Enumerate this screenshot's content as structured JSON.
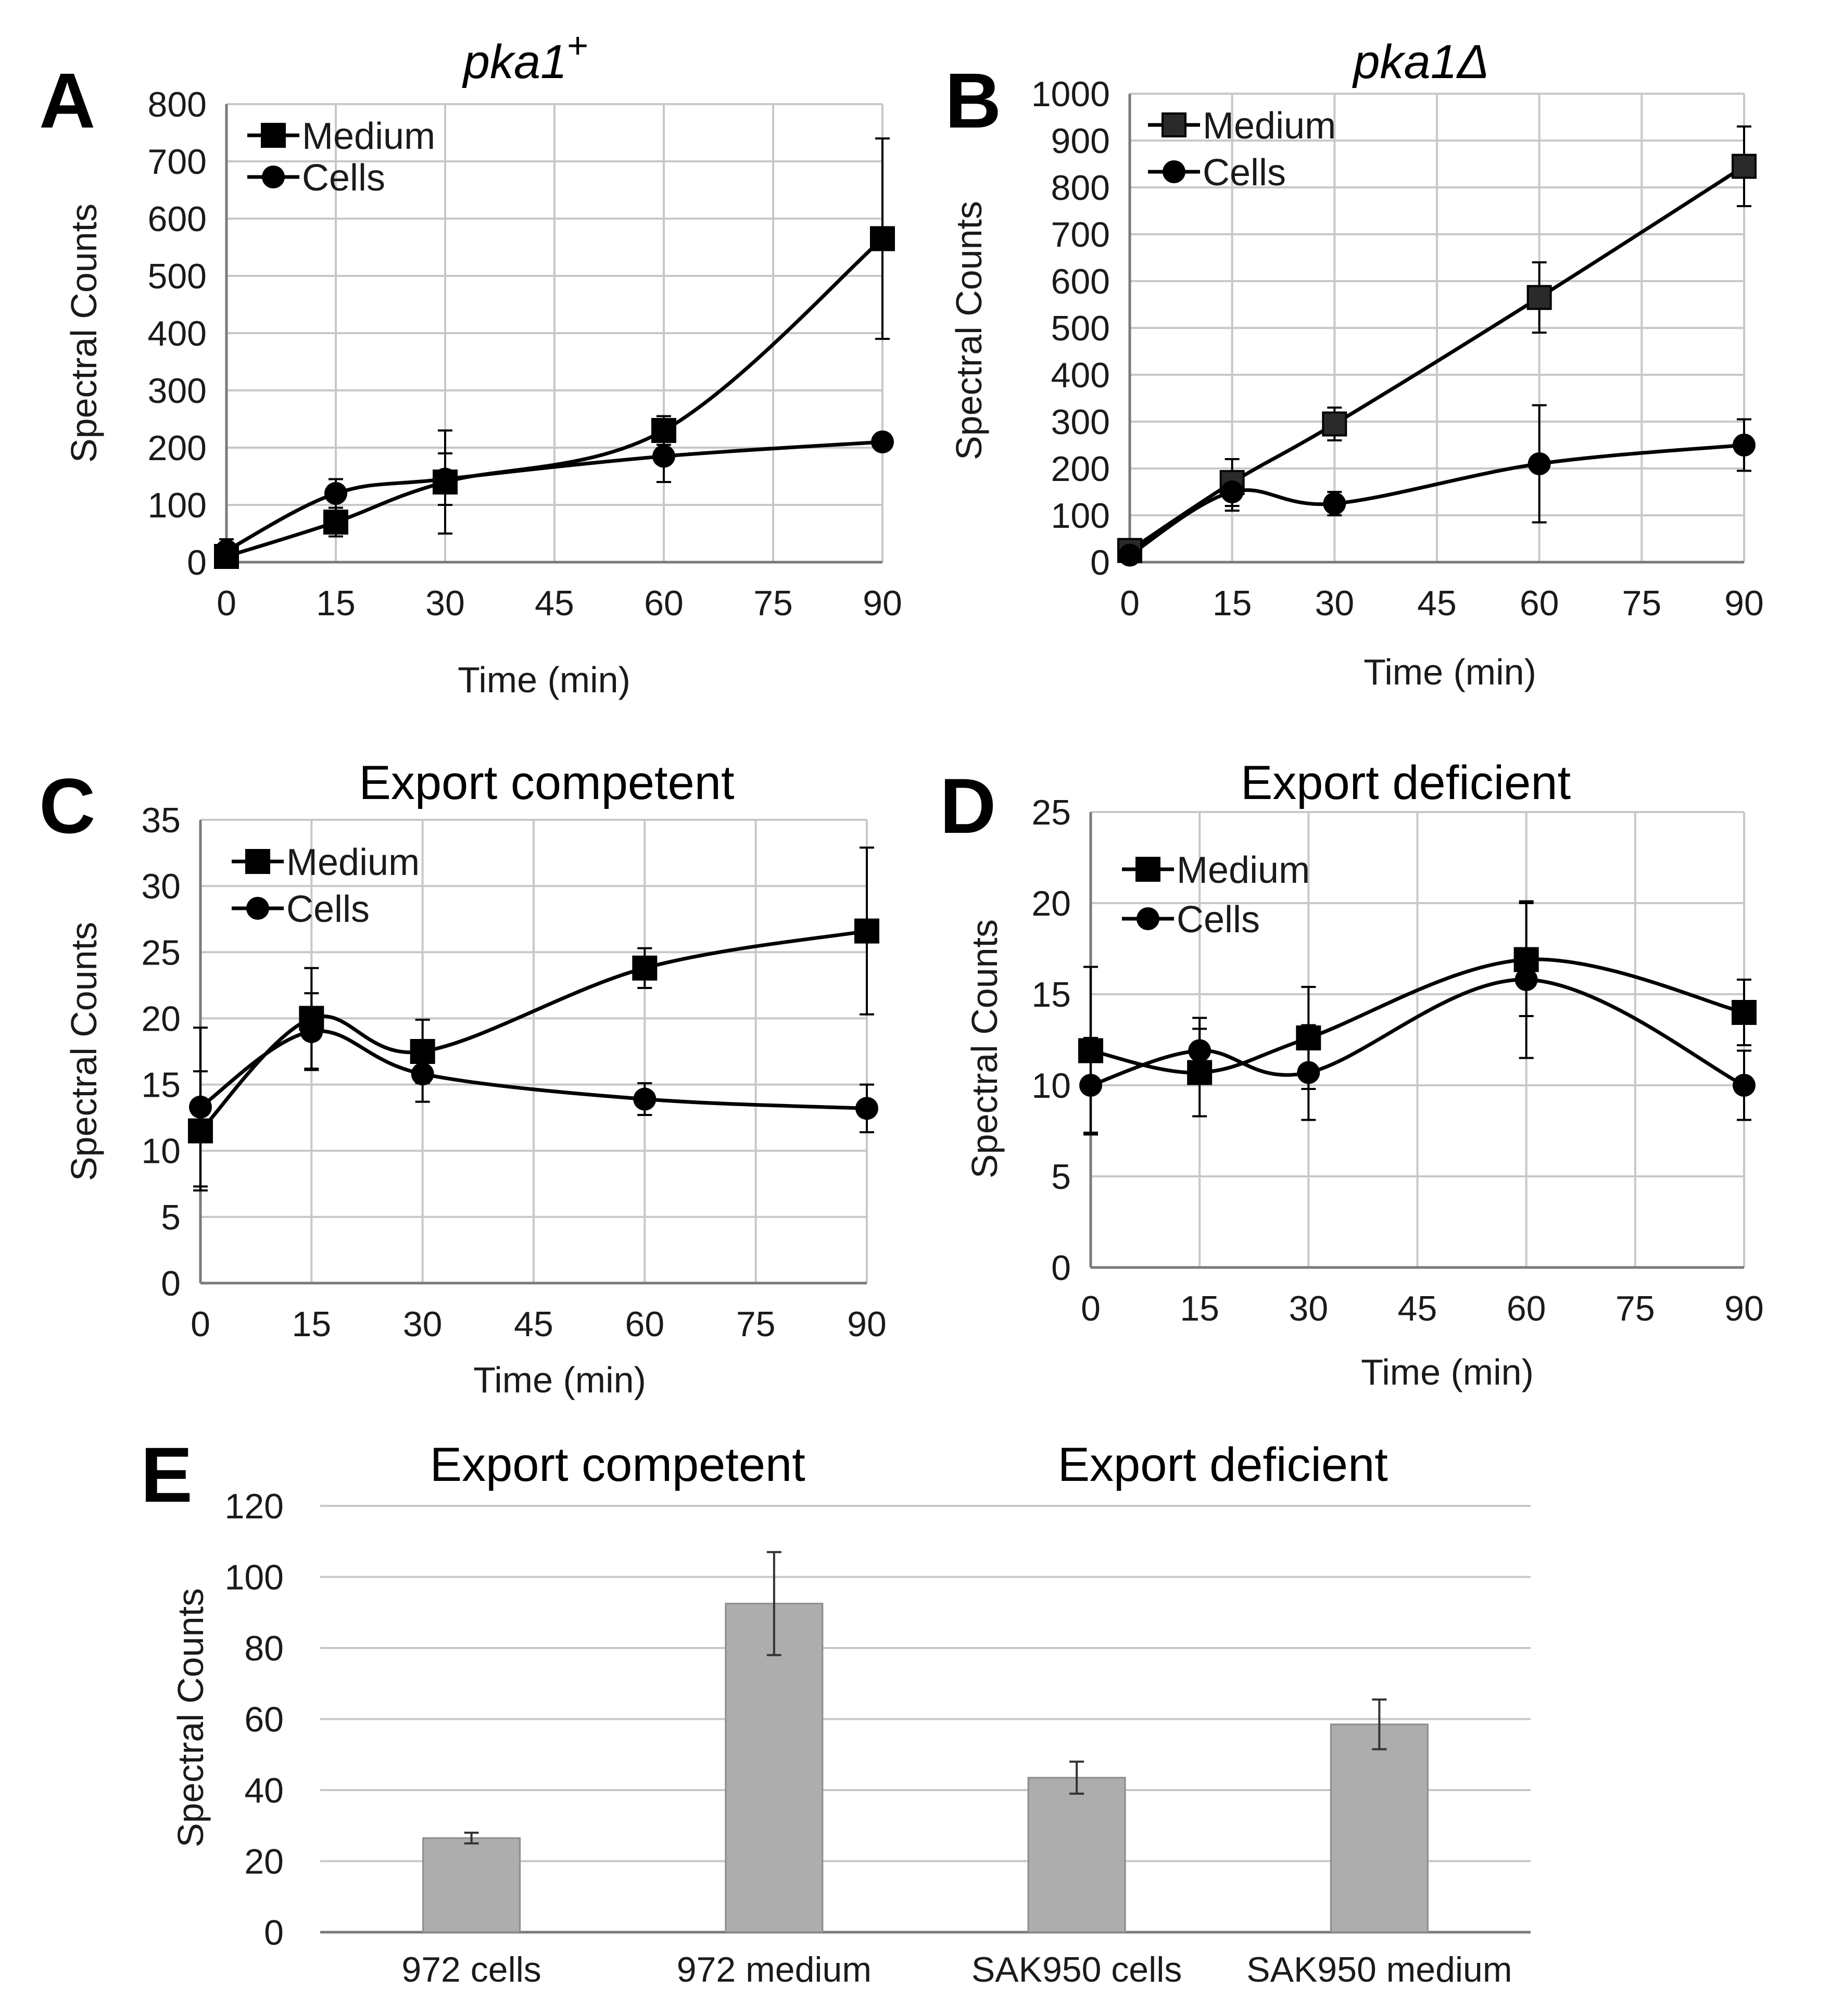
{
  "chart_data": [
    {
      "id": "A",
      "panel_letter": "A",
      "type": "line",
      "title": "pka1",
      "title_sup": "+",
      "xlabel": "Time (min)",
      "ylabel": "Spectral Counts",
      "xlim": [
        0,
        90
      ],
      "xticks": [
        0,
        15,
        30,
        45,
        60,
        75,
        90
      ],
      "ylim": [
        0,
        800
      ],
      "yticks": [
        0,
        100,
        200,
        300,
        400,
        500,
        600,
        700,
        800
      ],
      "grid": true,
      "legend": "top-left",
      "series": [
        {
          "name": "Medium",
          "marker": "square",
          "x": [
            0,
            15,
            30,
            60,
            90
          ],
          "y": [
            10,
            70,
            140,
            230,
            565
          ],
          "err": [
            30,
            25,
            90,
            25,
            175
          ]
        },
        {
          "name": "Cells",
          "marker": "circle",
          "x": [
            0,
            15,
            30,
            60,
            90
          ],
          "y": [
            20,
            120,
            145,
            185,
            210
          ],
          "err": [
            20,
            25,
            45,
            45,
            0
          ]
        }
      ]
    },
    {
      "id": "B",
      "panel_letter": "B",
      "type": "line",
      "title": "pka1Δ",
      "xlabel": "Time (min)",
      "ylabel": "Spectral Counts",
      "xlim": [
        0,
        90
      ],
      "xticks": [
        0,
        15,
        30,
        45,
        60,
        75,
        90
      ],
      "ylim": [
        0,
        1000
      ],
      "yticks": [
        0,
        100,
        200,
        300,
        400,
        500,
        600,
        700,
        800,
        900,
        1000
      ],
      "grid": true,
      "legend": "top-left",
      "series": [
        {
          "name": "Medium",
          "marker": "square",
          "x": [
            0,
            15,
            30,
            60,
            90
          ],
          "y": [
            25,
            170,
            295,
            565,
            845
          ],
          "err": [
            0,
            50,
            35,
            75,
            85
          ]
        },
        {
          "name": "Cells",
          "marker": "circle",
          "x": [
            0,
            15,
            30,
            60,
            90
          ],
          "y": [
            15,
            150,
            125,
            210,
            250
          ],
          "err": [
            0,
            40,
            25,
            125,
            55
          ]
        }
      ]
    },
    {
      "id": "C",
      "panel_letter": "C",
      "type": "line",
      "title": "Export competent",
      "xlabel": "Time (min)",
      "ylabel": "Spectral Counts",
      "xlim": [
        0,
        90
      ],
      "xticks": [
        0,
        15,
        30,
        45,
        60,
        75,
        90
      ],
      "ylim": [
        0,
        35
      ],
      "yticks": [
        0,
        5,
        10,
        15,
        20,
        25,
        30,
        35
      ],
      "grid": true,
      "legend": "top-left",
      "series": [
        {
          "name": "Medium",
          "marker": "square",
          "x": [
            0,
            15,
            30,
            60,
            90
          ],
          "y": [
            11.5,
            20,
            17.5,
            23.8,
            26.6
          ],
          "err": [
            4.5,
            3.8,
            2.4,
            1.5,
            6.3
          ]
        },
        {
          "name": "Cells",
          "marker": "circle",
          "x": [
            0,
            15,
            30,
            60,
            90
          ],
          "y": [
            13.3,
            19,
            15.8,
            13.9,
            13.2
          ],
          "err": [
            6,
            2.9,
            2.1,
            1.2,
            1.8
          ]
        }
      ]
    },
    {
      "id": "D",
      "panel_letter": "D",
      "type": "line",
      "title": "Export deficient",
      "xlabel": "Time (min)",
      "ylabel": "Spectral Counts",
      "xlim": [
        0,
        90
      ],
      "xticks": [
        0,
        15,
        30,
        45,
        60,
        75,
        90
      ],
      "ylim": [
        0,
        25
      ],
      "yticks": [
        0,
        5,
        10,
        15,
        20,
        25
      ],
      "grid": true,
      "legend": "top-left",
      "series": [
        {
          "name": "Medium",
          "marker": "square",
          "x": [
            0,
            15,
            30,
            60,
            90
          ],
          "y": [
            11.9,
            10.7,
            12.6,
            16.9,
            14
          ],
          "err": [
            4.6,
            2.4,
            2.8,
            3.1,
            1.8
          ]
        },
        {
          "name": "Cells",
          "marker": "circle",
          "x": [
            0,
            15,
            30,
            60,
            90
          ],
          "y": [
            10,
            11.9,
            10.7,
            15.8,
            10
          ],
          "err": [
            2.6,
            1.8,
            2.6,
            4.3,
            1.9
          ]
        }
      ]
    },
    {
      "id": "E",
      "panel_letter": "E",
      "type": "bar",
      "group_labels": [
        "Export competent",
        "Export deficient"
      ],
      "ylabel": "Spectral Counts",
      "ylim": [
        0,
        120
      ],
      "yticks": [
        0,
        20,
        40,
        60,
        80,
        100,
        120
      ],
      "grid": true,
      "categories": [
        "972 cells",
        "972 medium",
        "SAK950 cells",
        "SAK950 medium"
      ],
      "values": [
        26.5,
        92.5,
        43.5,
        58.5
      ],
      "err": [
        1.5,
        14.5,
        4.5,
        7
      ]
    }
  ]
}
